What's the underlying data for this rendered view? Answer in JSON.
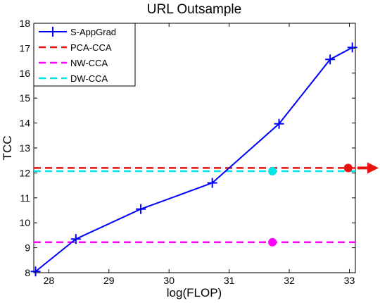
{
  "chart_data": {
    "type": "line",
    "title": "URL Outsample",
    "xlabel": "log(FLOP)",
    "ylabel": "TCC",
    "xlim": [
      27.75,
      33.1
    ],
    "ylim": [
      8,
      18
    ],
    "xticks": [
      28,
      29,
      30,
      31,
      32,
      33
    ],
    "yticks": [
      8,
      9,
      10,
      11,
      12,
      13,
      14,
      15,
      16,
      17,
      18
    ],
    "grid": false,
    "legend_position": "top-left",
    "series": [
      {
        "name": "S-AppGrad",
        "color": "#0000ff",
        "style": "solid",
        "marker": "plus",
        "x": [
          27.78,
          28.45,
          29.53,
          30.72,
          31.83,
          32.68,
          33.05
        ],
        "y": [
          8.05,
          9.35,
          10.55,
          11.6,
          13.97,
          16.55,
          17.03
        ]
      },
      {
        "name": "PCA-CCA",
        "color": "#e8130f",
        "style": "dashed",
        "value": 12.2,
        "marker_point": {
          "x": 32.98,
          "y": 12.2
        }
      },
      {
        "name": "NW-CCA",
        "color": "#ff00ff",
        "style": "dashed",
        "value": 9.22,
        "marker_point": {
          "x": 31.72,
          "y": 9.22
        }
      },
      {
        "name": "DW-CCA",
        "color": "#00e5e5",
        "style": "dashed",
        "value": 12.07,
        "marker_point": {
          "x": 31.72,
          "y": 12.07
        }
      }
    ],
    "annotations": [
      {
        "type": "arrow",
        "color": "#e8130f",
        "direction": "right",
        "at_y": 12.2
      }
    ]
  }
}
